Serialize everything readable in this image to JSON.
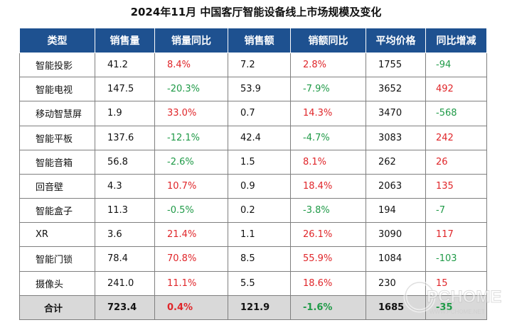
{
  "title": "2024年11月 中国客厅智能设备线上市场规模及变化",
  "headers": [
    "类型",
    "销售量",
    "销量同比",
    "销售额",
    "销额同比",
    "平均价格",
    "同比增减"
  ],
  "rows": [
    {
      "type": "智能投影",
      "vol": "41.2",
      "vol_yoy": "8.4%",
      "amt": "7.2",
      "amt_yoy": "2.8%",
      "price": "1755",
      "price_delta": "-94"
    },
    {
      "type": "智能电视",
      "vol": "147.5",
      "vol_yoy": "-20.3%",
      "amt": "53.9",
      "amt_yoy": "-7.9%",
      "price": "3652",
      "price_delta": "492"
    },
    {
      "type": "移动智慧屏",
      "vol": "1.9",
      "vol_yoy": "33.0%",
      "amt": "0.7",
      "amt_yoy": "14.3%",
      "price": "3470",
      "price_delta": "-568"
    },
    {
      "type": "智能平板",
      "vol": "137.6",
      "vol_yoy": "-12.1%",
      "amt": "42.4",
      "amt_yoy": "-4.7%",
      "price": "3083",
      "price_delta": "242"
    },
    {
      "type": "智能音箱",
      "vol": "56.8",
      "vol_yoy": "-2.6%",
      "amt": "1.5",
      "amt_yoy": "8.1%",
      "price": "262",
      "price_delta": "26"
    },
    {
      "type": "回音壁",
      "vol": "4.3",
      "vol_yoy": "10.7%",
      "amt": "0.9",
      "amt_yoy": "18.4%",
      "price": "2063",
      "price_delta": "135"
    },
    {
      "type": "智能盒子",
      "vol": "11.3",
      "vol_yoy": "-0.5%",
      "amt": "0.2",
      "amt_yoy": "-3.8%",
      "price": "194",
      "price_delta": "-7"
    },
    {
      "type": "XR",
      "vol": "3.6",
      "vol_yoy": "21.4%",
      "amt": "1.1",
      "amt_yoy": "26.1%",
      "price": "3090",
      "price_delta": "117"
    },
    {
      "type": "智能门锁",
      "vol": "78.4",
      "vol_yoy": "70.8%",
      "amt": "8.5",
      "amt_yoy": "55.9%",
      "price": "1084",
      "price_delta": "-103"
    },
    {
      "type": "摄像头",
      "vol": "241.0",
      "vol_yoy": "11.1%",
      "amt": "5.5",
      "amt_yoy": "18.6%",
      "price": "230",
      "price_delta": "15"
    }
  ],
  "total": {
    "type": "合计",
    "vol": "723.4",
    "vol_yoy": "0.4%",
    "amt": "121.9",
    "amt_yoy": "-1.6%",
    "price": "1685",
    "price_delta": "-35"
  },
  "colors": {
    "header_bg": "#1e5190",
    "positive": "#e0262a",
    "negative": "#1f9a47",
    "total_bg": "#d9d9d9"
  },
  "watermark": {
    "main": "PCHOME",
    "sub": "WWW.PCHOME.NET"
  }
}
